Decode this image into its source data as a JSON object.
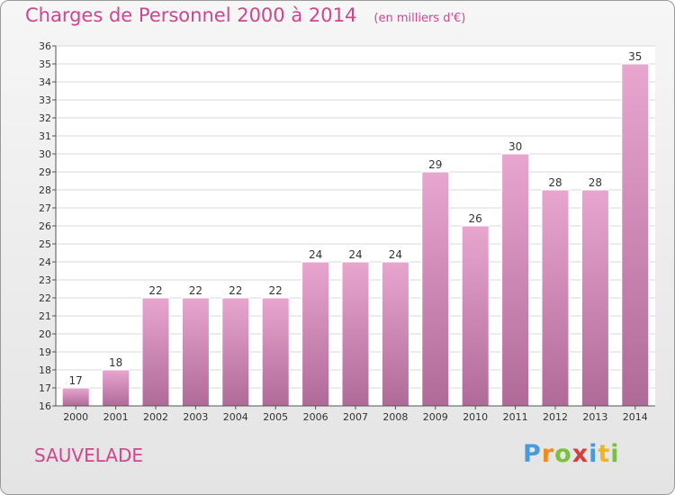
{
  "title": "Charges de Personnel 2000 à 2014",
  "subtitle": "(en milliers d'€)",
  "municipality": "SAUVELADE",
  "logo": {
    "text": "Proxiti",
    "letters": [
      "P",
      "r",
      "o",
      "x",
      "i",
      "t",
      "i"
    ],
    "colors": [
      "#4a9ad8",
      "#f08c1e",
      "#7cc040",
      "#d83c3c",
      "#4a9ad8",
      "#f0b41e",
      "#7cc040"
    ]
  },
  "chart_data": {
    "type": "bar",
    "categories": [
      "2000",
      "2001",
      "2002",
      "2003",
      "2004",
      "2005",
      "2006",
      "2007",
      "2008",
      "2009",
      "2010",
      "2011",
      "2012",
      "2013",
      "2014"
    ],
    "values": [
      17,
      18,
      22,
      22,
      22,
      22,
      24,
      24,
      24,
      29,
      26,
      30,
      28,
      28,
      35
    ],
    "data_labels": [
      "17",
      "18",
      "22",
      "22",
      "22",
      "22",
      "24",
      "24",
      "24",
      "29",
      "26",
      "30",
      "28",
      "28",
      "35"
    ],
    "yticks": [
      "16",
      "17",
      "18",
      "19",
      "20",
      "21",
      "22",
      "23",
      "24",
      "25",
      "26",
      "27",
      "28",
      "29",
      "30",
      "31",
      "32",
      "33",
      "34",
      "35",
      "36"
    ],
    "ylim": [
      16,
      36
    ],
    "grid": true,
    "bar_color_top": "#e8a6cf",
    "bar_color_bottom": "#b06a98",
    "title": "Charges de Personnel 2000 à 2014",
    "xlabel": "",
    "ylabel": ""
  }
}
